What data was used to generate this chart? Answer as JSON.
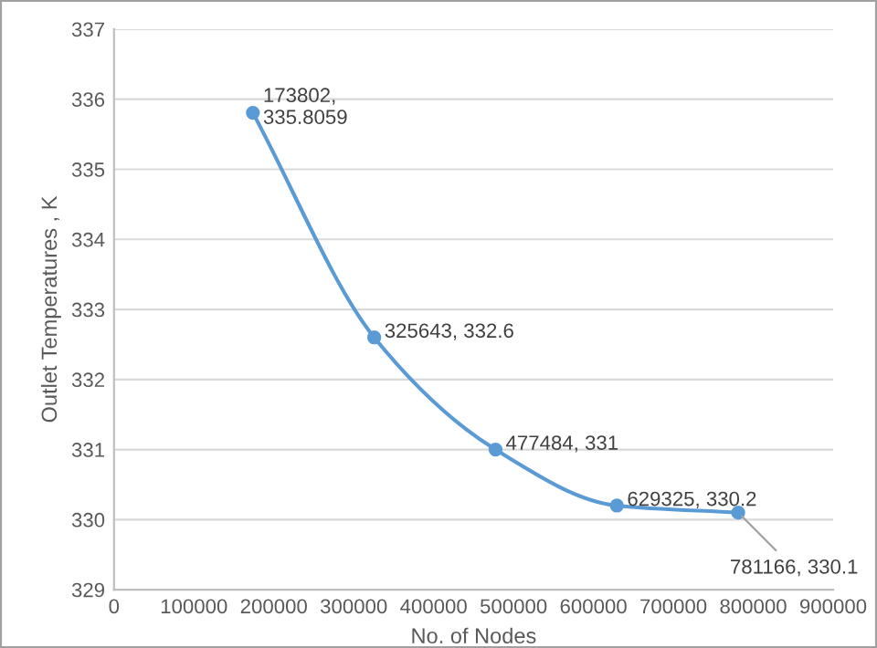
{
  "chart_data": {
    "type": "line",
    "xlabel": "No. of Nodes",
    "ylabel": "Outlet Temperatures , K",
    "x": [
      173802,
      325643,
      477484,
      629325,
      781166
    ],
    "series": [
      {
        "color": "#5b9bd5",
        "values": [
          335.8059,
          332.6,
          331,
          330.2,
          330.1
        ],
        "value_labels": [
          "173802,\n335.8059",
          "325643, 332.6",
          "477484, 331",
          "629325, 330.2",
          "781166, 330.1"
        ]
      }
    ],
    "xlim": [
      0,
      900000
    ],
    "xticks": [
      0,
      100000,
      200000,
      300000,
      400000,
      500000,
      600000,
      700000,
      800000,
      900000
    ],
    "ylim": [
      329,
      337
    ],
    "yticks": [
      329,
      330,
      331,
      332,
      333,
      334,
      335,
      336,
      337
    ],
    "grid": "y",
    "marker": "circle",
    "line_style": "solid",
    "legend": false
  }
}
